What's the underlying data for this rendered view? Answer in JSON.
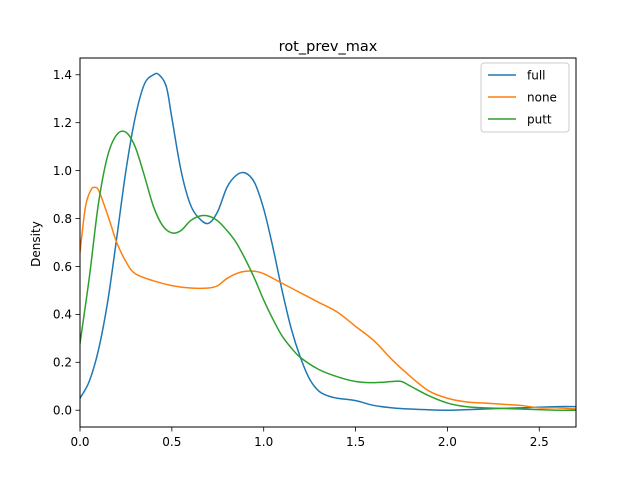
{
  "chart_data": {
    "type": "line",
    "title": "rot_prev_max",
    "xlabel": "",
    "ylabel": "Density",
    "xlim": [
      0.0,
      2.7
    ],
    "ylim": [
      -0.07,
      1.47
    ],
    "xticks": [
      0.0,
      0.5,
      1.0,
      1.5,
      2.0,
      2.5
    ],
    "xtick_labels": [
      "0.0",
      "0.5",
      "1.0",
      "1.5",
      "2.0",
      "2.5"
    ],
    "yticks": [
      0.0,
      0.2,
      0.4,
      0.6,
      0.8,
      1.0,
      1.2,
      1.4
    ],
    "ytick_labels": [
      "0.0",
      "0.2",
      "0.4",
      "0.6",
      "0.8",
      "1.0",
      "1.2",
      "1.4"
    ],
    "grid": false,
    "legend_position": "top-right",
    "series": [
      {
        "name": "full",
        "color": "#1f77b4",
        "x": [
          0.0,
          0.05,
          0.1,
          0.15,
          0.2,
          0.25,
          0.3,
          0.35,
          0.4,
          0.43,
          0.47,
          0.5,
          0.55,
          0.6,
          0.65,
          0.7,
          0.75,
          0.8,
          0.85,
          0.9,
          0.95,
          1.0,
          1.05,
          1.1,
          1.15,
          1.2,
          1.25,
          1.3,
          1.35,
          1.4,
          1.5,
          1.6,
          1.7,
          1.8,
          2.0,
          2.2,
          2.4,
          2.6,
          2.7
        ],
        "y": [
          0.05,
          0.12,
          0.25,
          0.45,
          0.72,
          1.0,
          1.22,
          1.36,
          1.4,
          1.4,
          1.35,
          1.22,
          1.0,
          0.86,
          0.8,
          0.78,
          0.83,
          0.93,
          0.98,
          0.99,
          0.95,
          0.84,
          0.68,
          0.5,
          0.34,
          0.22,
          0.13,
          0.08,
          0.06,
          0.05,
          0.04,
          0.02,
          0.01,
          0.005,
          0.0,
          0.005,
          0.01,
          0.015,
          0.015
        ]
      },
      {
        "name": "none",
        "color": "#ff7f0e",
        "x": [
          0.0,
          0.03,
          0.06,
          0.08,
          0.1,
          0.13,
          0.17,
          0.2,
          0.25,
          0.3,
          0.4,
          0.5,
          0.6,
          0.7,
          0.75,
          0.8,
          0.85,
          0.9,
          0.95,
          1.0,
          1.1,
          1.2,
          1.3,
          1.4,
          1.5,
          1.6,
          1.7,
          1.8,
          1.9,
          2.0,
          2.1,
          2.2,
          2.3,
          2.4,
          2.5,
          2.6,
          2.7
        ],
        "y": [
          0.66,
          0.85,
          0.92,
          0.93,
          0.92,
          0.86,
          0.77,
          0.7,
          0.62,
          0.57,
          0.54,
          0.52,
          0.51,
          0.51,
          0.52,
          0.55,
          0.57,
          0.58,
          0.58,
          0.57,
          0.53,
          0.49,
          0.45,
          0.41,
          0.35,
          0.29,
          0.21,
          0.14,
          0.08,
          0.05,
          0.035,
          0.03,
          0.025,
          0.02,
          0.01,
          0.01,
          0.005
        ]
      },
      {
        "name": "putt",
        "color": "#2ca02c",
        "x": [
          0.0,
          0.05,
          0.1,
          0.15,
          0.2,
          0.25,
          0.3,
          0.35,
          0.4,
          0.45,
          0.5,
          0.55,
          0.6,
          0.65,
          0.7,
          0.75,
          0.8,
          0.85,
          0.9,
          0.95,
          1.0,
          1.05,
          1.1,
          1.15,
          1.2,
          1.3,
          1.4,
          1.5,
          1.6,
          1.7,
          1.75,
          1.8,
          1.9,
          2.0,
          2.1,
          2.2,
          2.4,
          2.6,
          2.7
        ],
        "y": [
          0.28,
          0.55,
          0.86,
          1.06,
          1.15,
          1.16,
          1.1,
          0.98,
          0.85,
          0.77,
          0.74,
          0.75,
          0.79,
          0.81,
          0.81,
          0.79,
          0.75,
          0.7,
          0.63,
          0.55,
          0.46,
          0.38,
          0.31,
          0.26,
          0.22,
          0.17,
          0.14,
          0.12,
          0.115,
          0.12,
          0.12,
          0.1,
          0.06,
          0.03,
          0.015,
          0.01,
          0.005,
          0.0,
          0.0
        ]
      }
    ]
  }
}
